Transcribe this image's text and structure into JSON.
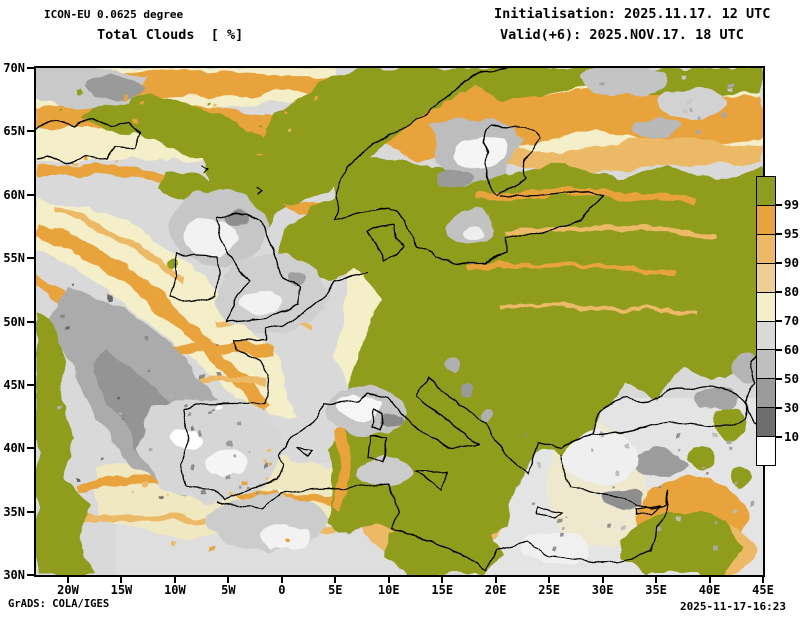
{
  "header": {
    "model": "ICON-EU 0.0625 degree",
    "product": "Total Clouds  [ %]",
    "initialisation": "Initialisation: 2025.11.17. 12 UTC",
    "valid": "Valid(+6): 2025.NOV.17. 18 UTC"
  },
  "map": {
    "lat_labels": [
      "70N",
      "65N",
      "60N",
      "55N",
      "50N",
      "45N",
      "40N",
      "35N",
      "30N"
    ],
    "lon_labels": [
      "20W",
      "15W",
      "10W",
      "5W",
      "0",
      "5E",
      "10E",
      "15E",
      "20E",
      "25E",
      "30E",
      "35E",
      "40E",
      "45E"
    ]
  },
  "colorbar": {
    "units": "%",
    "levels": [
      "99.5",
      "95",
      "90",
      "80",
      "70",
      "60",
      "50",
      "30",
      "10"
    ],
    "colors": [
      "#8f9c1f",
      "#e8a33c",
      "#ecba66",
      "#eecd96",
      "#f4eec9",
      "#d9d9d9",
      "#bfbfbf",
      "#9b9b9b",
      "#6e6e6e",
      "#ffffff"
    ]
  },
  "map_palette": {
    "overcast_green": "#8f9c1f",
    "orange_95": "#e8a33c",
    "light_orange_90": "#ecba66",
    "tan_80": "#eecd96",
    "cream_70": "#f4eec9",
    "gray_60": "#d9d9d9",
    "gray_50": "#bfbfbf",
    "gray_30": "#9b9b9b",
    "gray_10": "#6e6e6e",
    "clear_white": "#ffffff"
  },
  "footer": {
    "credit": "GrADS: COLA/IGES",
    "timestamp": "2025-11-17-16:23"
  }
}
